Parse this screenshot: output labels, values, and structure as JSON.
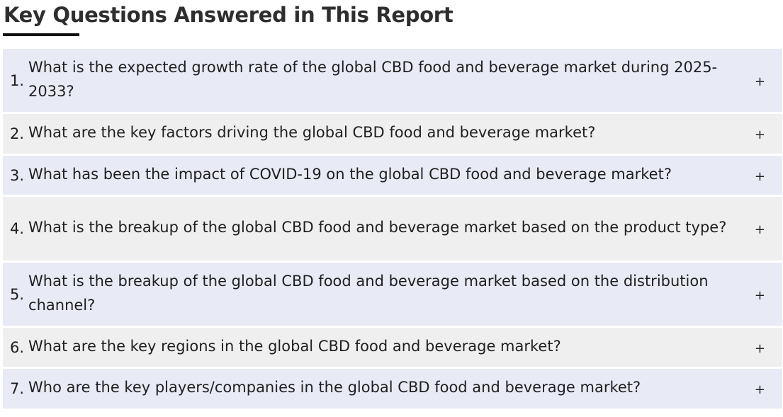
{
  "heading": "Key Questions Answered in This Report",
  "questions": [
    {
      "number": "1.",
      "text": "What is the expected growth rate of the global CBD food and beverage market during 2025-2033?",
      "toggle": "+"
    },
    {
      "number": "2.",
      "text": "What are the key factors driving the global CBD food and beverage market?",
      "toggle": "+"
    },
    {
      "number": "3.",
      "text": "What has been the impact of COVID-19 on the global CBD food and beverage market?",
      "toggle": "+"
    },
    {
      "number": "4.",
      "text": "What is the breakup of the global CBD food and beverage market based on the product type?",
      "toggle": "+"
    },
    {
      "number": "5.",
      "text": "What is the breakup of the global CBD food and beverage market based on the distribution channel?",
      "toggle": "+"
    },
    {
      "number": "6.",
      "text": "What are the key regions in the global CBD food and beverage market?",
      "toggle": "+"
    },
    {
      "number": "7.",
      "text": "Who are the key players/companies in the global CBD food and beverage market?",
      "toggle": "+"
    }
  ],
  "colors": {
    "row_alt_1": "#e8eaf6",
    "row_alt_2": "#efefef",
    "heading_underline": "#111111"
  }
}
